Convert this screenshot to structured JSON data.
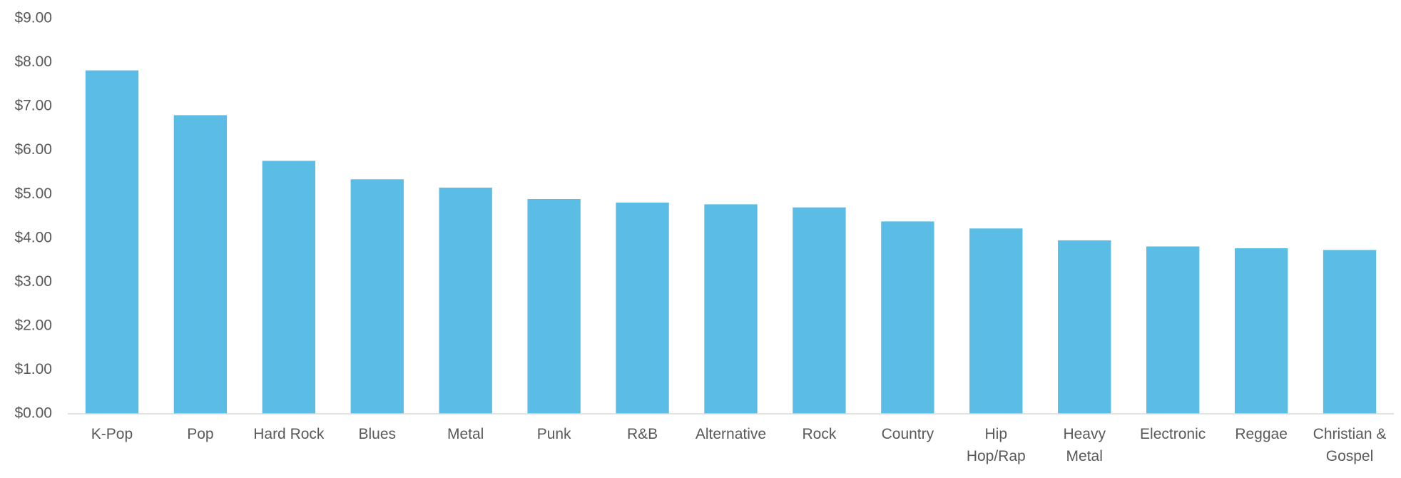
{
  "chart_data": {
    "type": "bar",
    "categories": [
      "K-Pop",
      "Pop",
      "Hard Rock",
      "Blues",
      "Metal",
      "Punk",
      "R&B",
      "Alternative",
      "Rock",
      "Country",
      "Hip Hop/Rap",
      "Heavy Metal",
      "Electronic",
      "Reggae",
      "Christian & Gospel"
    ],
    "values": [
      7.82,
      6.8,
      5.76,
      5.34,
      5.15,
      4.89,
      4.81,
      4.77,
      4.7,
      4.38,
      4.22,
      3.95,
      3.81,
      3.77,
      3.73
    ],
    "color": "#5bbde5",
    "ylim": [
      0,
      9
    ],
    "yticks": [
      {
        "value": 0,
        "label": "$0.00"
      },
      {
        "value": 1,
        "label": "$1.00"
      },
      {
        "value": 2,
        "label": "$2.00"
      },
      {
        "value": 3,
        "label": "$3.00"
      },
      {
        "value": 4,
        "label": "$4.00"
      },
      {
        "value": 5,
        "label": "$5.00"
      },
      {
        "value": 6,
        "label": "$6.00"
      },
      {
        "value": 7,
        "label": "$7.00"
      },
      {
        "value": 8,
        "label": "$8.00"
      },
      {
        "value": 9,
        "label": "$9.00"
      }
    ],
    "grid": false
  }
}
